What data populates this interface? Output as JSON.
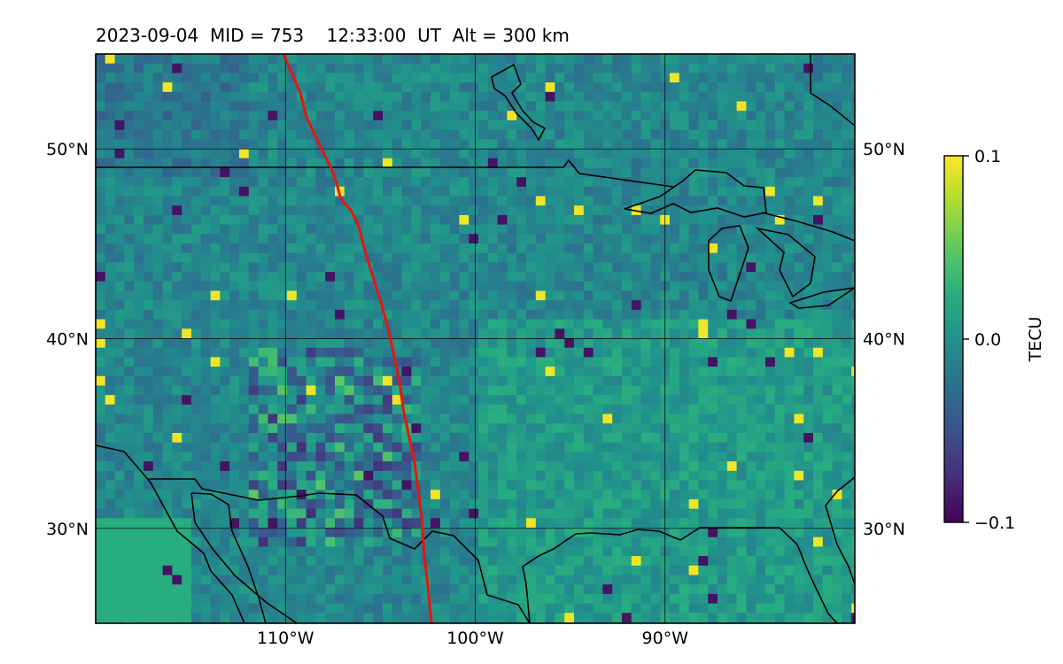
{
  "title": {
    "date": "2023-09-04",
    "mid": "MID = 753",
    "time": "12:33:00  UT",
    "alt": "Alt = 300 km"
  },
  "map": {
    "lon_range": [
      -120,
      -80
    ],
    "lat_range": [
      25,
      55
    ],
    "gridlines": true,
    "lat_ticks": [
      {
        "value": 30,
        "label": "30°N"
      },
      {
        "value": 40,
        "label": "40°N"
      },
      {
        "value": 50,
        "label": "50°N"
      }
    ],
    "lon_ticks": [
      {
        "value": -110,
        "label": "110°W"
      },
      {
        "value": -100,
        "label": "100°W"
      },
      {
        "value": -90,
        "label": "90°W"
      }
    ],
    "colors": {
      "track": "#e8150f",
      "coastline": "#000000",
      "grid": "#000000"
    },
    "track": [
      [
        -110.1,
        55.0
      ],
      [
        -109.2,
        52.9
      ],
      [
        -108.9,
        51.7
      ],
      [
        -108.2,
        50.2
      ],
      [
        -107.6,
        49.0
      ],
      [
        -107.3,
        48.2
      ],
      [
        -107.1,
        47.4
      ],
      [
        -106.5,
        46.7
      ],
      [
        -106.1,
        45.8
      ],
      [
        -105.8,
        44.6
      ],
      [
        -105.4,
        43.3
      ],
      [
        -105.0,
        42.0
      ],
      [
        -104.6,
        40.6
      ],
      [
        -104.3,
        39.2
      ],
      [
        -104.0,
        37.8
      ],
      [
        -103.8,
        36.3
      ],
      [
        -103.5,
        34.9
      ],
      [
        -103.2,
        33.5
      ],
      [
        -103.0,
        32.0
      ],
      [
        -102.8,
        30.4
      ],
      [
        -102.7,
        28.7
      ],
      [
        -102.5,
        27.0
      ],
      [
        -102.3,
        25.0
      ]
    ]
  },
  "colorbar": {
    "label": "TECU",
    "min": -0.1,
    "max": 0.1,
    "ticks": [
      {
        "value": 0.1,
        "label": "0.1"
      },
      {
        "value": 0.0,
        "label": "0.0"
      },
      {
        "value": -0.1,
        "label": "−0.1"
      }
    ],
    "colormap": "viridis"
  }
}
